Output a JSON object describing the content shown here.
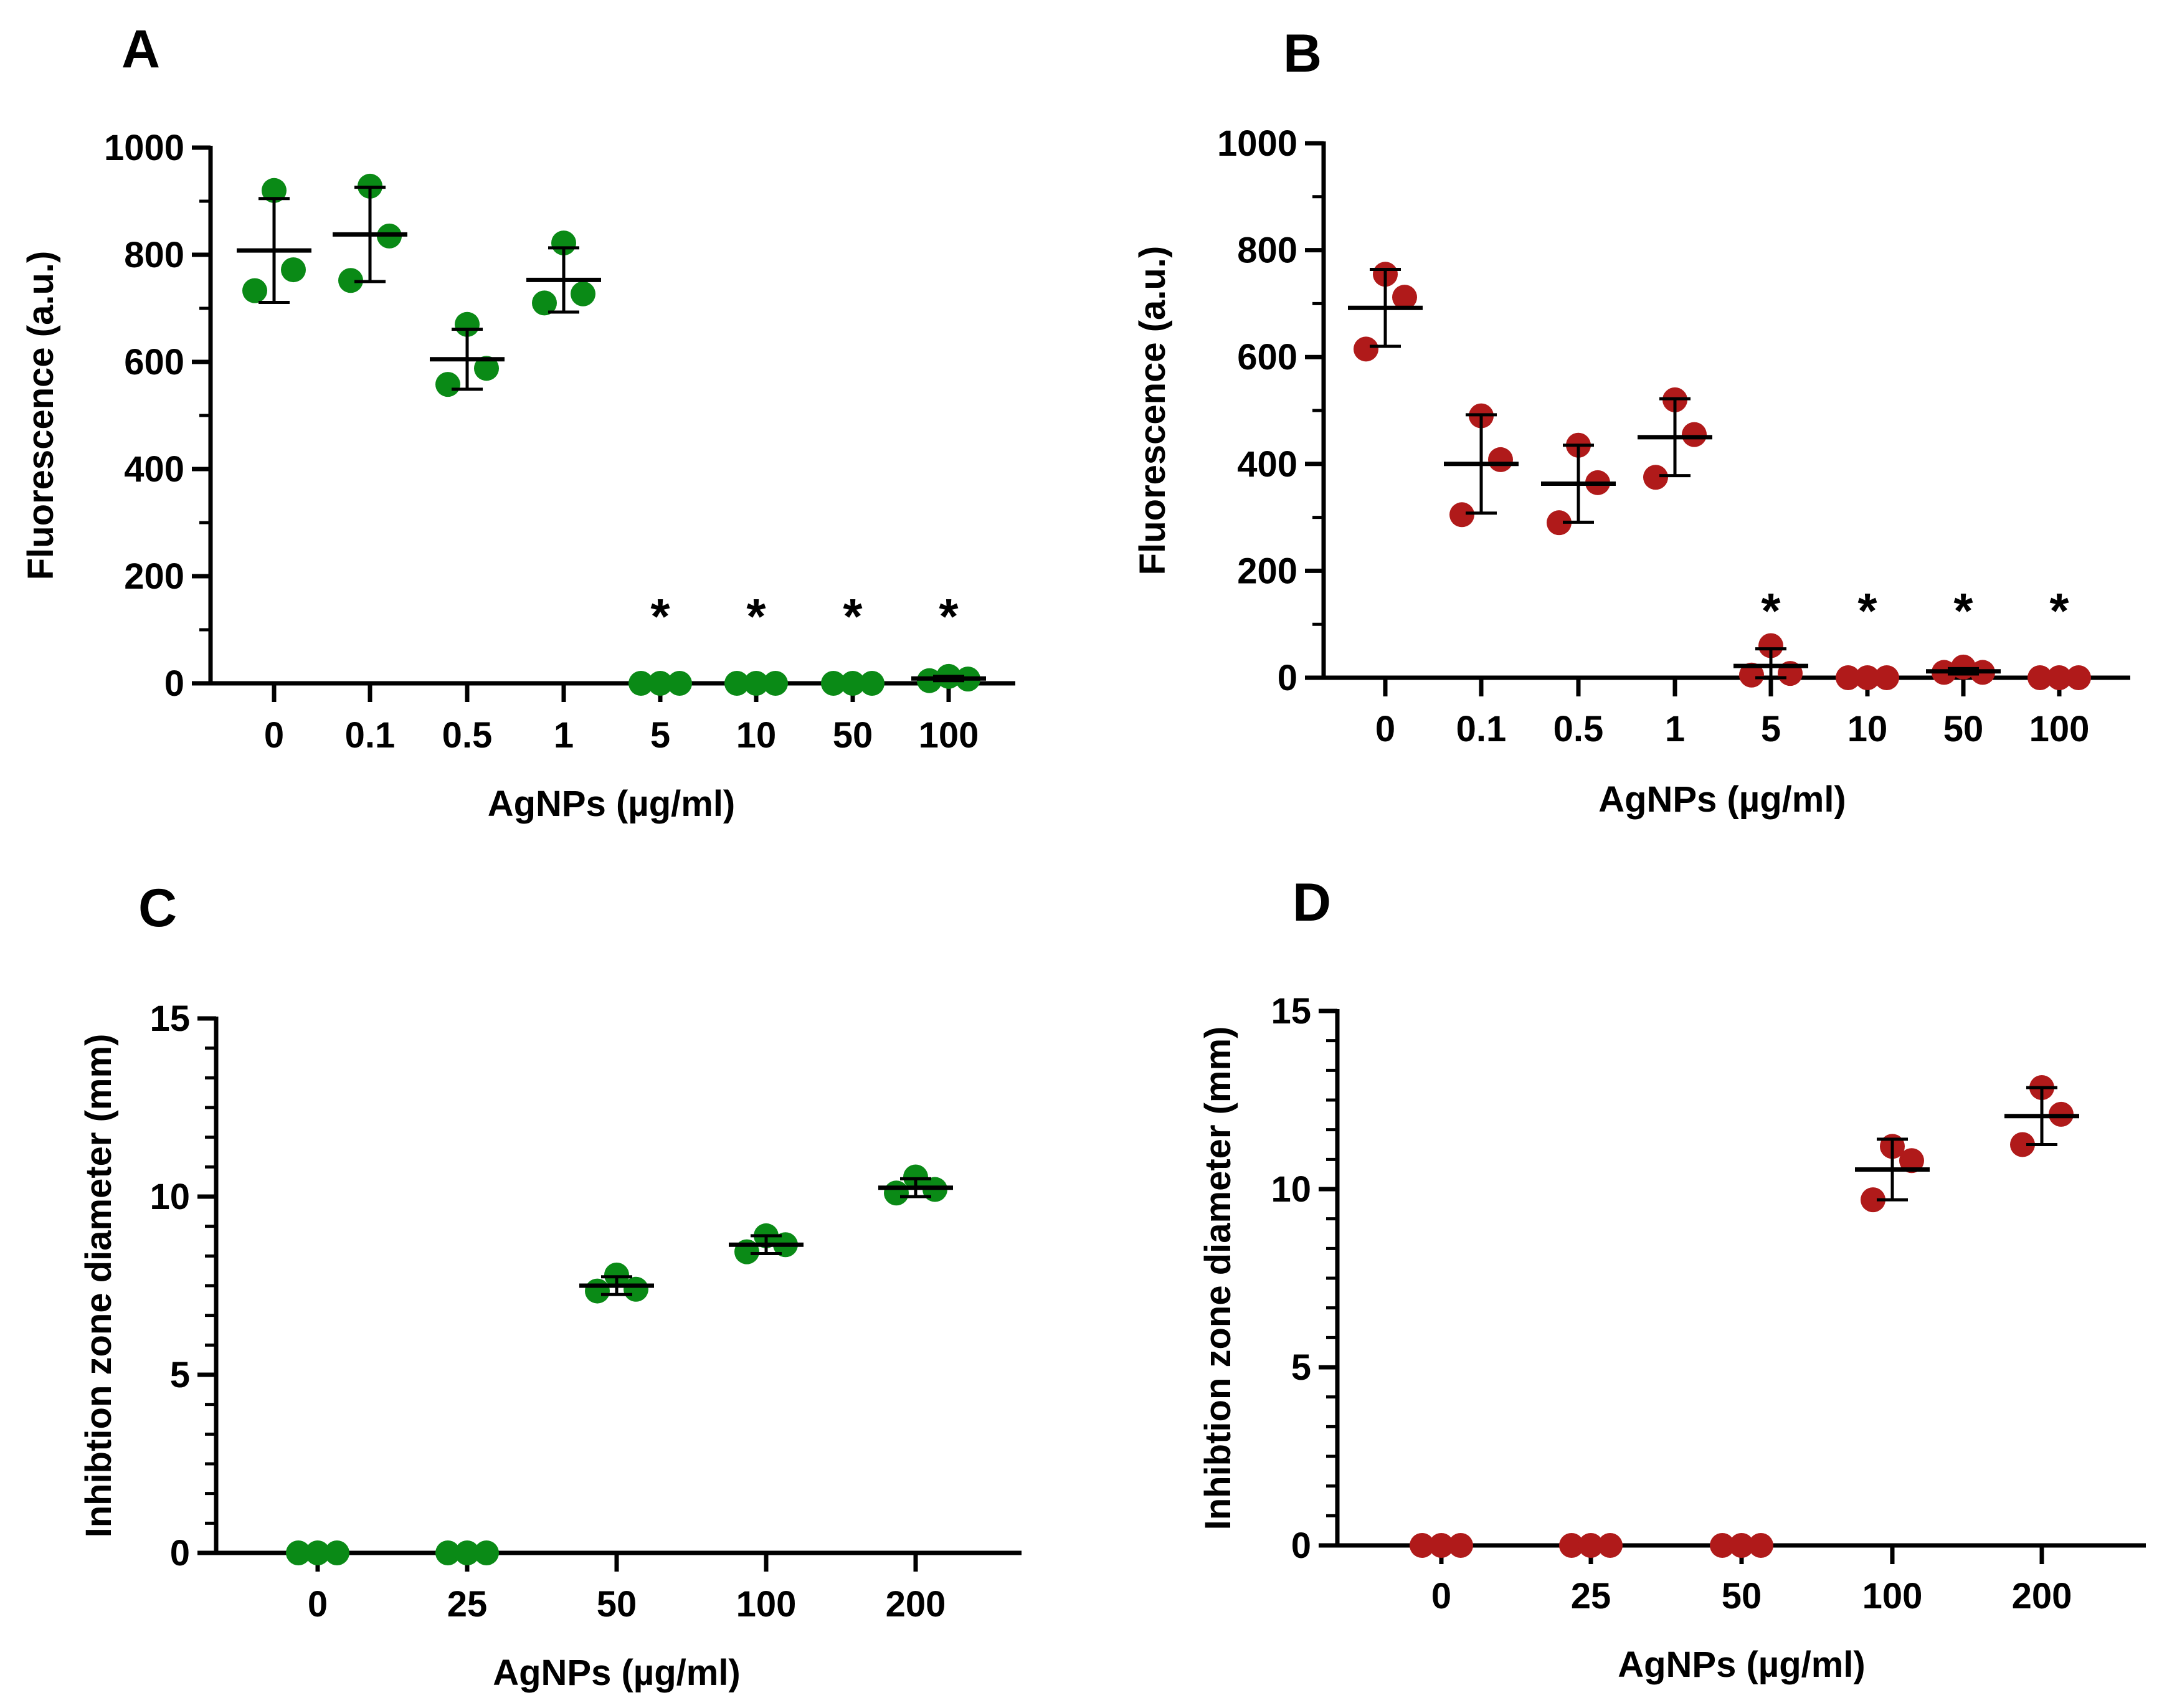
{
  "chart_data": [
    {
      "panel": "A",
      "type": "scatter",
      "xlabel": "AgNPs (µg/ml)",
      "ylabel": "Fluorescence (a.u.)",
      "ylim": [
        0,
        1000
      ],
      "yticks": [
        0,
        200,
        400,
        600,
        800,
        1000
      ],
      "categories": [
        "0",
        "0.1",
        "0.5",
        "1",
        "5",
        "10",
        "50",
        "100"
      ],
      "color": "#0a8a16",
      "points": [
        [
          733,
          920,
          772
        ],
        [
          752,
          928,
          835
        ],
        [
          558,
          670,
          588
        ],
        [
          710,
          822,
          727
        ],
        [
          0,
          0,
          0
        ],
        [
          0,
          0,
          0
        ],
        [
          0,
          0,
          0
        ],
        [
          5,
          13,
          8
        ]
      ],
      "mean": [
        808,
        838,
        605,
        753,
        0,
        0,
        0,
        9
      ],
      "sd": [
        97,
        88,
        56,
        60,
        0,
        0,
        0,
        4
      ],
      "significance": [
        "",
        "",
        "",
        "",
        "*",
        "*",
        "*",
        "*"
      ]
    },
    {
      "panel": "B",
      "type": "scatter",
      "xlabel": "AgNPs (µg/ml)",
      "ylabel": "Fluorescence (a.u.)",
      "ylim": [
        0,
        1000
      ],
      "yticks": [
        0,
        200,
        400,
        600,
        800,
        1000
      ],
      "categories": [
        "0",
        "0.1",
        "0.5",
        "1",
        "5",
        "10",
        "50",
        "100"
      ],
      "color": "#b01a1a",
      "points": [
        [
          615,
          755,
          712
        ],
        [
          305,
          490,
          408
        ],
        [
          290,
          435,
          365
        ],
        [
          375,
          520,
          455
        ],
        [
          5,
          60,
          8
        ],
        [
          0,
          0,
          0
        ],
        [
          10,
          20,
          10
        ],
        [
          0,
          0,
          0
        ]
      ],
      "mean": [
        692,
        400,
        363,
        450,
        22,
        0,
        12,
        0
      ],
      "sd": [
        72,
        92,
        72,
        72,
        32,
        0,
        5,
        0
      ],
      "significance": [
        "",
        "",
        "",
        "",
        "*",
        "*",
        "*",
        "*"
      ]
    },
    {
      "panel": "C",
      "type": "scatter",
      "xlabel": "AgNPs (µg/ml)",
      "ylabel": "Inhibtion zone diameter (mm)",
      "ylim": [
        0,
        15
      ],
      "yticks": [
        0,
        5,
        10,
        15
      ],
      "categories": [
        "0",
        "25",
        "50",
        "100",
        "200"
      ],
      "color": "#0a8a16",
      "points": [
        [
          0,
          0,
          0
        ],
        [
          0,
          0,
          0
        ],
        [
          7.35,
          7.8,
          7.4
        ],
        [
          8.45,
          8.9,
          8.65
        ],
        [
          10.1,
          10.55,
          10.2
        ]
      ],
      "mean": [
        0,
        0,
        7.5,
        8.65,
        10.25
      ],
      "sd": [
        0,
        0,
        0.25,
        0.25,
        0.25
      ],
      "significance": [
        "",
        "",
        "",
        "",
        ""
      ]
    },
    {
      "panel": "D",
      "type": "scatter",
      "xlabel": "AgNPs (µg/ml)",
      "ylabel": "Inhibtion zone diameter (mm)",
      "ylim": [
        0,
        15
      ],
      "yticks": [
        0,
        5,
        10,
        15
      ],
      "categories": [
        "0",
        "25",
        "50",
        "100",
        "200"
      ],
      "color": "#b01a1a",
      "points": [
        [
          0,
          0,
          0
        ],
        [
          0,
          0,
          0
        ],
        [
          0,
          0,
          0
        ],
        [
          9.7,
          11.2,
          10.8
        ],
        [
          11.25,
          12.85,
          12.1
        ]
      ],
      "mean": [
        0,
        0,
        0,
        10.55,
        12.05
      ],
      "sd": [
        0,
        0,
        0,
        0.85,
        0.8
      ],
      "significance": [
        "",
        "",
        "",
        "",
        ""
      ]
    }
  ]
}
